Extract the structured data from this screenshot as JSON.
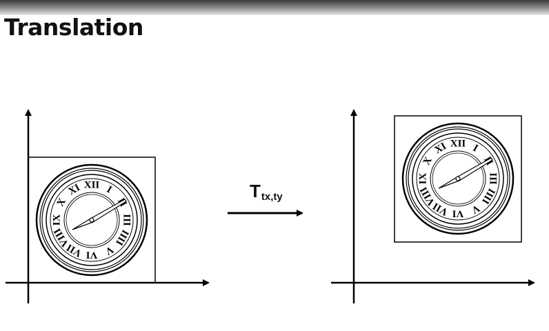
{
  "slide": {
    "title": "Translation"
  },
  "transform": {
    "symbol": "T",
    "subscript": "tx,ty"
  },
  "clock": {
    "numerals": [
      "XII",
      "I",
      "II",
      "III",
      "IIII",
      "V",
      "VI",
      "VII",
      "VIII",
      "IX",
      "X",
      "XI"
    ]
  }
}
